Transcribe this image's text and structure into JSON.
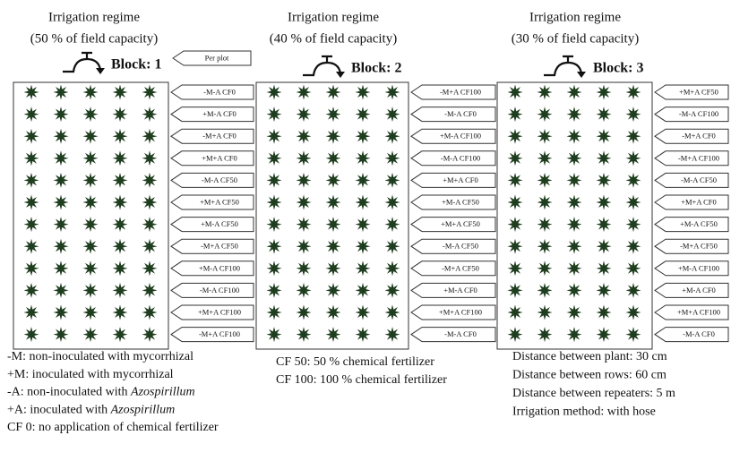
{
  "per_plot": "Per plot",
  "blocks": [
    {
      "regime": "Irrigation regime",
      "capacity": "(50 % of field capacity)",
      "label": "Block: 1",
      "treatments": [
        "-M-A CF0",
        "+M-A CF0",
        "-M+A CF0",
        "+M+A CF0",
        "-M-A CF50",
        "+M+A CF50",
        "+M-A CF50",
        "-M+A CF50",
        "+M-A CF100",
        "-M-A CF100",
        "+M+A CF100",
        "-M+A CF100"
      ]
    },
    {
      "regime": "Irrigation regime",
      "capacity": "(40 % of field capacity)",
      "label": "Block: 2",
      "treatments": [
        "-M+A CF100",
        "-M-A CF0",
        "+M-A CF100",
        "-M-A CF100",
        "+M+A CF0",
        "+M-A CF50",
        "+M+A CF50",
        "-M-A CF50",
        "-M+A CF50",
        "+M-A CF0",
        "+M+A CF100",
        "-M-A CF0"
      ]
    },
    {
      "regime": "Irrigation regime",
      "capacity": "(30 % of field capacity)",
      "label": "Block: 3",
      "treatments": [
        "+M+A CF50",
        "-M-A CF100",
        "-M+A CF0",
        "-M+A CF100",
        "-M-A CF50",
        "+M+A CF0",
        "+M-A CF50",
        "-M+A CF50",
        "+M-A CF100",
        "+M-A CF0",
        "+M+A CF100",
        "-M-A CF0"
      ]
    }
  ],
  "legend": {
    "left": [
      {
        "text": "-M: non-inoculated with mycorrhizal"
      },
      {
        "text": "+M: inoculated with mycorrhizal"
      },
      {
        "text": "-A: non-inoculated with ",
        "em": "Azospirillum"
      },
      {
        "text": "+A: inoculated with ",
        "em": "Azospirillum"
      },
      {
        "text": "CF 0: no application of chemical fertilizer"
      }
    ],
    "middle": [
      {
        "text": "CF 50: 50 % chemical fertilizer"
      },
      {
        "text": "CF 100: 100 % chemical fertilizer"
      }
    ],
    "right": [
      {
        "text": "Distance between plant: 30 cm"
      },
      {
        "text": "Distance between rows: 60 cm"
      },
      {
        "text": "Distance between repeaters: 5 m"
      },
      {
        "text": "Irrigation method: with hose"
      }
    ]
  }
}
